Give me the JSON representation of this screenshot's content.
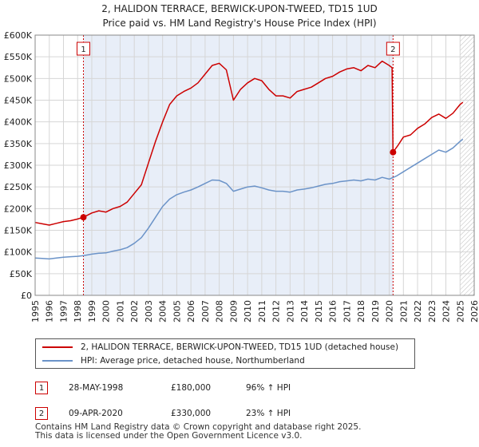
{
  "title_line1": "2, HALIDON TERRACE, BERWICK-UPON-TWEED, TD15 1UD",
  "title_line2": "Price paid vs. HM Land Registry's House Price Index (HPI)",
  "colors": {
    "red": "#cc0000",
    "blue": "#6b93c8",
    "band": "#e8eef8",
    "grid": "#d6d6d6",
    "marker_line": "#cc0000"
  },
  "chart_data": {
    "type": "line",
    "xlim": [
      1995,
      2026
    ],
    "ylim": [
      0,
      600000
    ],
    "xticks": [
      "1995",
      "1996",
      "1997",
      "1998",
      "1999",
      "2000",
      "2001",
      "2002",
      "2003",
      "2004",
      "2005",
      "2006",
      "2007",
      "2008",
      "2009",
      "2010",
      "2011",
      "2012",
      "2013",
      "2014",
      "2015",
      "2016",
      "2017",
      "2018",
      "2019",
      "2020",
      "2021",
      "2022",
      "2023",
      "2024",
      "2025",
      "2026"
    ],
    "yticks": [
      {
        "value": 0,
        "label": "£0"
      },
      {
        "value": 50000,
        "label": "£50K"
      },
      {
        "value": 100000,
        "label": "£100K"
      },
      {
        "value": 150000,
        "label": "£150K"
      },
      {
        "value": 200000,
        "label": "£200K"
      },
      {
        "value": 250000,
        "label": "£250K"
      },
      {
        "value": 300000,
        "label": "£300K"
      },
      {
        "value": 350000,
        "label": "£350K"
      },
      {
        "value": 400000,
        "label": "£400K"
      },
      {
        "value": 450000,
        "label": "£450K"
      },
      {
        "value": 500000,
        "label": "£500K"
      },
      {
        "value": 550000,
        "label": "£550K"
      },
      {
        "value": 600000,
        "label": "£600K"
      }
    ],
    "shaded_range": [
      1998.41,
      2020.27
    ],
    "hatched_from": 2025.0,
    "series": [
      {
        "name": "2, HALIDON TERRACE, BERWICK-UPON-TWEED, TD15 1UD (detached house)",
        "color": "#cc0000",
        "x": [
          1995.0,
          1995.5,
          1996.0,
          1996.5,
          1997.0,
          1997.5,
          1998.0,
          1998.41,
          1999.0,
          1999.5,
          2000.0,
          2000.5,
          2001.0,
          2001.5,
          2002.0,
          2002.5,
          2003.0,
          2003.5,
          2004.0,
          2004.5,
          2005.0,
          2005.5,
          2006.0,
          2006.5,
          2007.0,
          2007.5,
          2008.0,
          2008.5,
          2009.0,
          2009.5,
          2010.0,
          2010.5,
          2011.0,
          2011.5,
          2012.0,
          2012.5,
          2013.0,
          2013.5,
          2014.0,
          2014.5,
          2015.0,
          2015.5,
          2016.0,
          2016.5,
          2017.0,
          2017.5,
          2018.0,
          2018.5,
          2019.0,
          2019.5,
          2020.0,
          2020.2,
          2020.27,
          2020.6,
          2021.0,
          2021.5,
          2022.0,
          2022.5,
          2023.0,
          2023.5,
          2024.0,
          2024.5,
          2025.0,
          2025.2
        ],
        "y": [
          168000,
          165000,
          162000,
          166000,
          170000,
          172000,
          176000,
          180000,
          190000,
          195000,
          192000,
          200000,
          205000,
          215000,
          235000,
          255000,
          305000,
          355000,
          400000,
          440000,
          460000,
          470000,
          478000,
          490000,
          510000,
          530000,
          535000,
          520000,
          450000,
          475000,
          490000,
          500000,
          495000,
          475000,
          460000,
          460000,
          455000,
          470000,
          475000,
          480000,
          490000,
          500000,
          505000,
          515000,
          522000,
          525000,
          518000,
          530000,
          525000,
          540000,
          530000,
          525000,
          330000,
          345000,
          365000,
          370000,
          385000,
          395000,
          410000,
          418000,
          408000,
          420000,
          440000,
          445000
        ]
      },
      {
        "name": "HPI: Average price, detached house, Northumberland",
        "color": "#6b93c8",
        "x": [
          1995.0,
          1995.5,
          1996.0,
          1996.5,
          1997.0,
          1997.5,
          1998.0,
          1998.5,
          1999.0,
          1999.5,
          2000.0,
          2000.5,
          2001.0,
          2001.5,
          2002.0,
          2002.5,
          2003.0,
          2003.5,
          2004.0,
          2004.5,
          2005.0,
          2005.5,
          2006.0,
          2006.5,
          2007.0,
          2007.5,
          2008.0,
          2008.5,
          2009.0,
          2009.5,
          2010.0,
          2010.5,
          2011.0,
          2011.5,
          2012.0,
          2012.5,
          2013.0,
          2013.5,
          2014.0,
          2014.5,
          2015.0,
          2015.5,
          2016.0,
          2016.5,
          2017.0,
          2017.5,
          2018.0,
          2018.5,
          2019.0,
          2019.5,
          2020.0,
          2020.5,
          2021.0,
          2021.5,
          2022.0,
          2022.5,
          2023.0,
          2023.5,
          2024.0,
          2024.5,
          2025.0,
          2025.2
        ],
        "y": [
          86000,
          85000,
          84000,
          86000,
          88000,
          89000,
          90000,
          92000,
          95000,
          97000,
          98000,
          102000,
          105000,
          110000,
          120000,
          133000,
          155000,
          180000,
          205000,
          222000,
          232000,
          238000,
          243000,
          250000,
          258000,
          266000,
          265000,
          258000,
          240000,
          245000,
          250000,
          252000,
          248000,
          243000,
          240000,
          240000,
          238000,
          243000,
          245000,
          248000,
          252000,
          256000,
          258000,
          262000,
          264000,
          266000,
          264000,
          268000,
          266000,
          272000,
          268000,
          275000,
          285000,
          295000,
          305000,
          315000,
          325000,
          335000,
          330000,
          340000,
          355000,
          360000
        ]
      }
    ],
    "sales": [
      {
        "n": "1",
        "x": 1998.41,
        "y": 180000
      },
      {
        "n": "2",
        "x": 2020.27,
        "y": 330000
      }
    ]
  },
  "legend": {
    "red_label": "2, HALIDON TERRACE, BERWICK-UPON-TWEED, TD15 1UD (detached house)",
    "blue_label": "HPI: Average price, detached house, Northumberland"
  },
  "table": [
    {
      "n": "1",
      "date": "28-MAY-1998",
      "price": "£180,000",
      "hpi": "96% ↑ HPI"
    },
    {
      "n": "2",
      "date": "09-APR-2020",
      "price": "£330,000",
      "hpi": "23% ↑ HPI"
    }
  ],
  "footer_line1": "Contains HM Land Registry data © Crown copyright and database right 2025.",
  "footer_line2": "This data is licensed under the Open Government Licence v3.0."
}
